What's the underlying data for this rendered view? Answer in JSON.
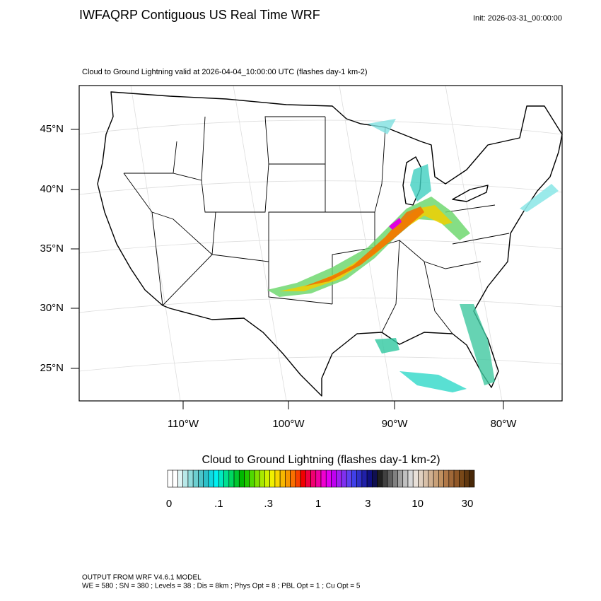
{
  "header": {
    "title": "IWFAQRP Contiguous US Real Time WRF",
    "init": "Init: 2026-03-31_00:00:00"
  },
  "map": {
    "subtitle": "Cloud to Ground Lightning valid at 2026-04-04_10:00:00 UTC   (flashes day-1 km-2)",
    "lat_labels": [
      "45°N",
      "40°N",
      "35°N",
      "30°N",
      "25°N"
    ],
    "lon_labels": [
      "110°W",
      "100°W",
      "90°W",
      "80°W"
    ]
  },
  "colorbar": {
    "title": "Cloud to Ground Lightning  (flashes day-1 km-2)",
    "labels": [
      "0",
      ".1",
      ".3",
      "1",
      "3",
      "10",
      "30"
    ],
    "colors": [
      "#ffffff",
      "#ffffff",
      "#e0f4f4",
      "#b8e8e8",
      "#90dcdc",
      "#6ccfd0",
      "#4cc4c8",
      "#2cc0c8",
      "#10d8e0",
      "#00f0f0",
      "#00e8c0",
      "#00e090",
      "#00d860",
      "#00c830",
      "#00b800",
      "#20c800",
      "#50d800",
      "#80e000",
      "#a8e800",
      "#d0f000",
      "#f0f000",
      "#f8d800",
      "#f8b800",
      "#f89800",
      "#f87000",
      "#f84000",
      "#f00000",
      "#f00040",
      "#f00070",
      "#f000a0",
      "#f000d0",
      "#e000f0",
      "#c000f0",
      "#a020f0",
      "#8030f0",
      "#6040f0",
      "#4040e8",
      "#3030c8",
      "#2020a8",
      "#101080",
      "#101050",
      "#202020",
      "#404040",
      "#606060",
      "#808080",
      "#a0a0a0",
      "#c0c0c0",
      "#d8d8d8",
      "#e8e0d8",
      "#e0d0c0",
      "#d8c0a8",
      "#d0b090",
      "#c8a078",
      "#c09060",
      "#b07848",
      "#a06838",
      "#905828",
      "#784818",
      "#603810",
      "#482808"
    ]
  },
  "footer": {
    "line1": "OUTPUT FROM WRF V4.6.1 MODEL",
    "line2": "WE = 580 ; SN = 380 ; Levels = 38 ; Dis = 8km ; Phys Opt = 8 ; PBL Opt = 1 ; Cu Opt = 5"
  }
}
